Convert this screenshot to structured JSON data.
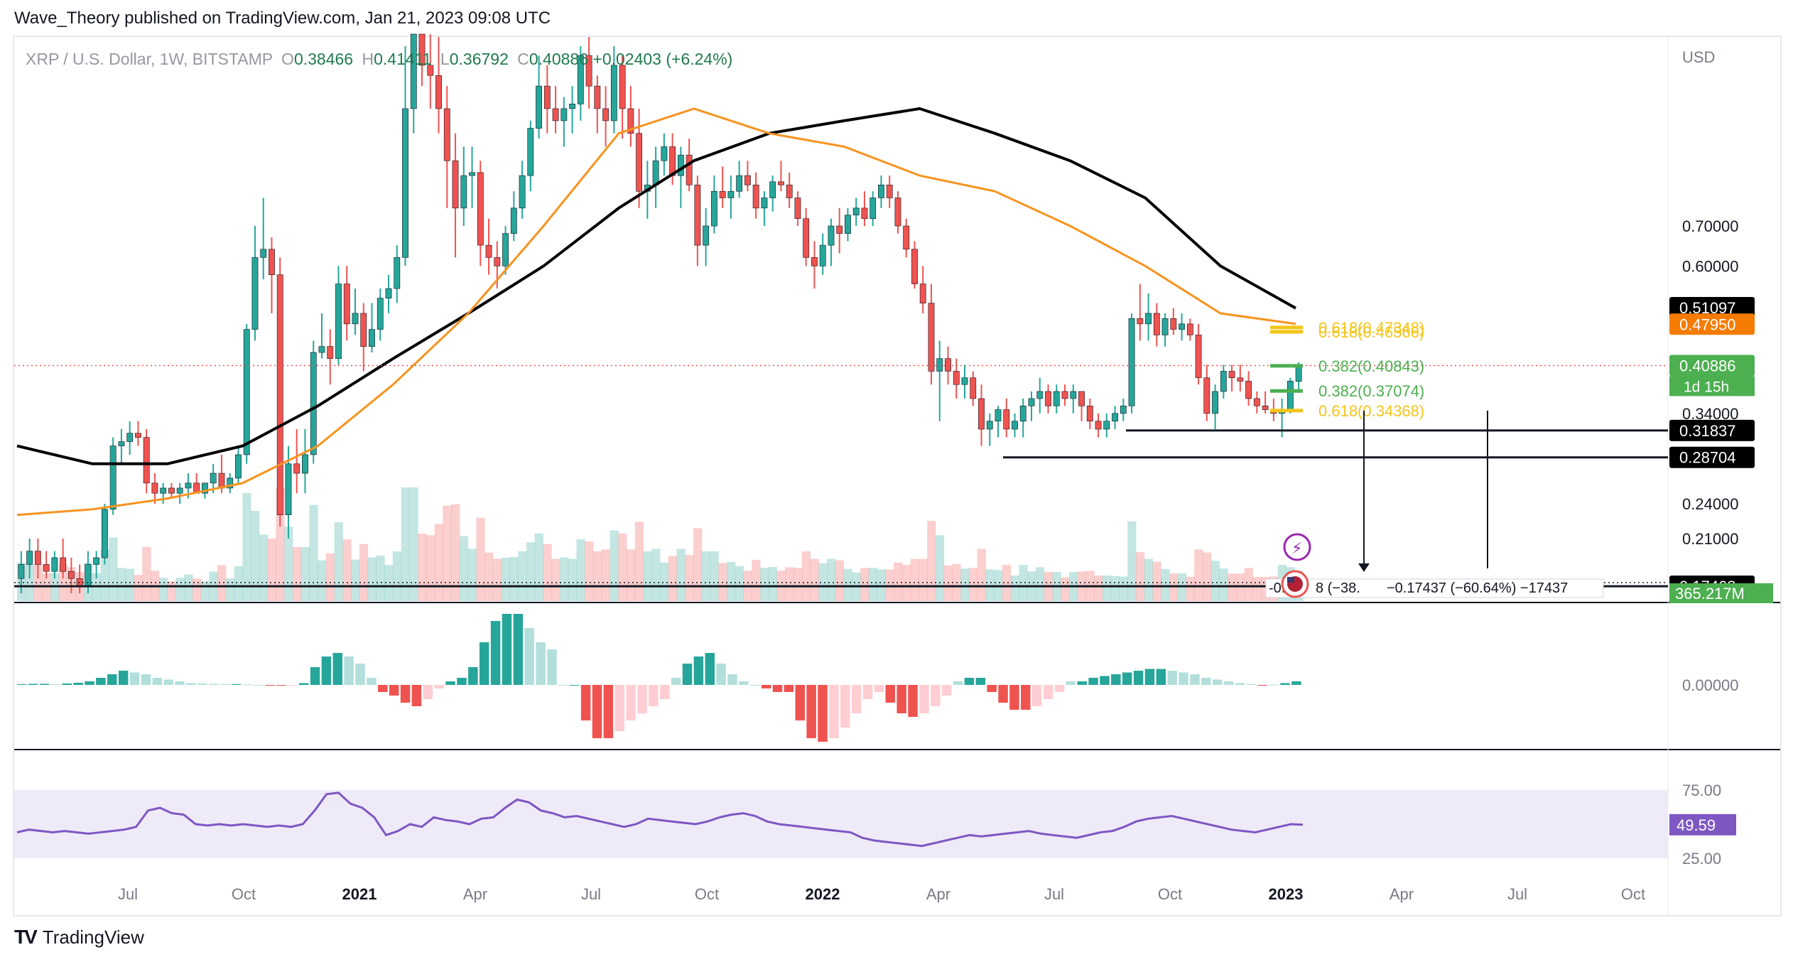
{
  "publisher": "Wave_Theory published on TradingView.com, Jan 21, 2023 09:08 UTC",
  "legend": {
    "symbol": "XRP / U.S. Dollar, 1W, BITSTAMP",
    "o_label": "O",
    "o_value": "0.38466",
    "h_label": "H",
    "h_value": "0.41411",
    "l_label": "L",
    "l_value": "0.36792",
    "c_label": "C",
    "c_value": "0.40886",
    "change": "+0.02403 (+6.24%)"
  },
  "footer": {
    "logo_text": "TradingView",
    "logo_mark": "TV"
  },
  "colors": {
    "up": "#26a69a",
    "down": "#ef5350",
    "ema_orange": "#f7931e",
    "sma_black": "#000000",
    "fib_gold": "#f5c518",
    "fib_green": "#4caf50",
    "rsi": "#7e57c2",
    "macd": "#2962ff"
  },
  "chart_data": [
    {
      "type": "candlestick",
      "price_axis_label": "USD",
      "scale": "log",
      "y_ticks": [
        "0.70000",
        "0.60000",
        "0.34000",
        "0.24000",
        "0.21000"
      ],
      "x_ticks": [
        "Jul",
        "Oct",
        "2021",
        "Apr",
        "Jul",
        "Oct",
        "2022",
        "Apr",
        "Jul",
        "Oct",
        "2023",
        "Apr",
        "Jul",
        "Oct"
      ],
      "ohlc": [
        [
          0.18,
          0.2,
          0.17,
          0.19
        ],
        [
          0.19,
          0.21,
          0.18,
          0.2
        ],
        [
          0.2,
          0.21,
          0.18,
          0.19
        ],
        [
          0.19,
          0.2,
          0.18,
          0.185
        ],
        [
          0.185,
          0.2,
          0.18,
          0.195
        ],
        [
          0.195,
          0.21,
          0.18,
          0.185
        ],
        [
          0.185,
          0.195,
          0.17,
          0.18
        ],
        [
          0.18,
          0.19,
          0.17,
          0.175
        ],
        [
          0.175,
          0.2,
          0.17,
          0.19
        ],
        [
          0.19,
          0.2,
          0.18,
          0.195
        ],
        [
          0.195,
          0.24,
          0.19,
          0.235
        ],
        [
          0.235,
          0.31,
          0.23,
          0.3
        ],
        [
          0.3,
          0.32,
          0.28,
          0.305
        ],
        [
          0.305,
          0.33,
          0.29,
          0.315
        ],
        [
          0.315,
          0.33,
          0.3,
          0.31
        ],
        [
          0.31,
          0.32,
          0.25,
          0.26
        ],
        [
          0.26,
          0.27,
          0.24,
          0.25
        ],
        [
          0.25,
          0.26,
          0.24,
          0.255
        ],
        [
          0.255,
          0.26,
          0.245,
          0.25
        ],
        [
          0.25,
          0.26,
          0.24,
          0.255
        ],
        [
          0.255,
          0.27,
          0.245,
          0.26
        ],
        [
          0.26,
          0.27,
          0.25,
          0.25
        ],
        [
          0.25,
          0.26,
          0.245,
          0.26
        ],
        [
          0.26,
          0.28,
          0.25,
          0.27
        ],
        [
          0.27,
          0.29,
          0.25,
          0.255
        ],
        [
          0.255,
          0.27,
          0.25,
          0.265
        ],
        [
          0.265,
          0.3,
          0.26,
          0.29
        ],
        [
          0.29,
          0.48,
          0.28,
          0.47
        ],
        [
          0.47,
          0.7,
          0.45,
          0.62
        ],
        [
          0.62,
          0.78,
          0.57,
          0.64
        ],
        [
          0.64,
          0.67,
          0.5,
          0.58
        ],
        [
          0.58,
          0.62,
          0.22,
          0.23
        ],
        [
          0.23,
          0.3,
          0.21,
          0.28
        ],
        [
          0.28,
          0.32,
          0.25,
          0.27
        ],
        [
          0.27,
          0.32,
          0.25,
          0.29
        ],
        [
          0.29,
          0.45,
          0.28,
          0.43
        ],
        [
          0.43,
          0.5,
          0.42,
          0.44
        ],
        [
          0.44,
          0.47,
          0.38,
          0.42
        ],
        [
          0.42,
          0.6,
          0.41,
          0.56
        ],
        [
          0.56,
          0.6,
          0.45,
          0.48
        ],
        [
          0.48,
          0.55,
          0.46,
          0.5
        ],
        [
          0.5,
          0.52,
          0.4,
          0.44
        ],
        [
          0.44,
          0.52,
          0.43,
          0.47
        ],
        [
          0.47,
          0.55,
          0.45,
          0.53
        ],
        [
          0.53,
          0.58,
          0.5,
          0.55
        ],
        [
          0.55,
          0.65,
          0.52,
          0.62
        ],
        [
          0.62,
          1.4,
          0.6,
          1.1
        ],
        [
          1.1,
          1.9,
          1.0,
          1.5
        ],
        [
          1.5,
          1.65,
          1.2,
          1.3
        ],
        [
          1.3,
          1.5,
          1.1,
          1.25
        ],
        [
          1.25,
          1.45,
          1.0,
          1.1
        ],
        [
          1.1,
          1.2,
          0.75,
          0.9
        ],
        [
          0.9,
          1.0,
          0.62,
          0.75
        ],
        [
          0.75,
          0.95,
          0.7,
          0.85
        ],
        [
          0.85,
          0.95,
          0.75,
          0.86
        ],
        [
          0.86,
          0.9,
          0.6,
          0.65
        ],
        [
          0.65,
          0.72,
          0.58,
          0.62
        ],
        [
          0.62,
          0.66,
          0.55,
          0.6
        ],
        [
          0.6,
          0.7,
          0.58,
          0.68
        ],
        [
          0.68,
          0.8,
          0.66,
          0.75
        ],
        [
          0.75,
          0.9,
          0.72,
          0.85
        ],
        [
          0.85,
          1.05,
          0.8,
          1.02
        ],
        [
          1.02,
          1.35,
          0.98,
          1.2
        ],
        [
          1.2,
          1.3,
          1.0,
          1.1
        ],
        [
          1.1,
          1.2,
          1.0,
          1.05
        ],
        [
          1.05,
          1.15,
          0.95,
          1.1
        ],
        [
          1.1,
          1.2,
          1.0,
          1.12
        ],
        [
          1.12,
          1.4,
          1.05,
          1.35
        ],
        [
          1.35,
          1.45,
          1.1,
          1.2
        ],
        [
          1.2,
          1.25,
          1.0,
          1.1
        ],
        [
          1.1,
          1.2,
          0.95,
          1.05
        ],
        [
          1.05,
          1.4,
          1.0,
          1.3
        ],
        [
          1.3,
          1.35,
          0.98,
          1.1
        ],
        [
          1.1,
          1.2,
          0.95,
          1.0
        ],
        [
          1.0,
          1.1,
          0.75,
          0.8
        ],
        [
          0.8,
          0.9,
          0.72,
          0.82
        ],
        [
          0.82,
          0.95,
          0.75,
          0.9
        ],
        [
          0.9,
          1.0,
          0.85,
          0.95
        ],
        [
          0.95,
          1.0,
          0.82,
          0.85
        ],
        [
          0.85,
          0.95,
          0.75,
          0.92
        ],
        [
          0.92,
          0.98,
          0.8,
          0.82
        ],
        [
          0.82,
          0.85,
          0.6,
          0.65
        ],
        [
          0.65,
          0.75,
          0.6,
          0.7
        ],
        [
          0.7,
          0.85,
          0.68,
          0.8
        ],
        [
          0.8,
          0.88,
          0.75,
          0.78
        ],
        [
          0.78,
          0.85,
          0.72,
          0.8
        ],
        [
          0.8,
          0.9,
          0.78,
          0.85
        ],
        [
          0.85,
          0.9,
          0.8,
          0.82
        ],
        [
          0.82,
          0.86,
          0.72,
          0.75
        ],
        [
          0.75,
          0.8,
          0.7,
          0.78
        ],
        [
          0.78,
          0.85,
          0.74,
          0.83
        ],
        [
          0.83,
          0.9,
          0.8,
          0.82
        ],
        [
          0.82,
          0.86,
          0.75,
          0.78
        ],
        [
          0.78,
          0.8,
          0.7,
          0.72
        ],
        [
          0.72,
          0.75,
          0.6,
          0.62
        ],
        [
          0.62,
          0.66,
          0.55,
          0.6
        ],
        [
          0.6,
          0.68,
          0.58,
          0.65
        ],
        [
          0.65,
          0.72,
          0.6,
          0.7
        ],
        [
          0.7,
          0.75,
          0.63,
          0.68
        ],
        [
          0.68,
          0.75,
          0.66,
          0.73
        ],
        [
          0.73,
          0.78,
          0.7,
          0.75
        ],
        [
          0.75,
          0.8,
          0.7,
          0.72
        ],
        [
          0.72,
          0.8,
          0.7,
          0.78
        ],
        [
          0.78,
          0.85,
          0.75,
          0.82
        ],
        [
          0.82,
          0.85,
          0.75,
          0.78
        ],
        [
          0.78,
          0.8,
          0.68,
          0.7
        ],
        [
          0.7,
          0.72,
          0.62,
          0.64
        ],
        [
          0.64,
          0.66,
          0.55,
          0.56
        ],
        [
          0.56,
          0.6,
          0.5,
          0.52
        ],
        [
          0.52,
          0.56,
          0.38,
          0.4
        ],
        [
          0.4,
          0.45,
          0.33,
          0.42
        ],
        [
          0.42,
          0.44,
          0.38,
          0.4
        ],
        [
          0.4,
          0.42,
          0.36,
          0.38
        ],
        [
          0.38,
          0.41,
          0.36,
          0.39
        ],
        [
          0.39,
          0.4,
          0.35,
          0.36
        ],
        [
          0.36,
          0.38,
          0.3,
          0.32
        ],
        [
          0.32,
          0.34,
          0.3,
          0.33
        ],
        [
          0.33,
          0.35,
          0.31,
          0.345
        ],
        [
          0.345,
          0.36,
          0.31,
          0.32
        ],
        [
          0.32,
          0.34,
          0.31,
          0.33
        ],
        [
          0.33,
          0.36,
          0.31,
          0.35
        ],
        [
          0.35,
          0.37,
          0.33,
          0.36
        ],
        [
          0.36,
          0.39,
          0.34,
          0.37
        ],
        [
          0.37,
          0.38,
          0.34,
          0.35
        ],
        [
          0.35,
          0.38,
          0.34,
          0.37
        ],
        [
          0.37,
          0.38,
          0.35,
          0.36
        ],
        [
          0.36,
          0.38,
          0.34,
          0.37
        ],
        [
          0.37,
          0.37,
          0.33,
          0.35
        ],
        [
          0.35,
          0.36,
          0.32,
          0.33
        ],
        [
          0.33,
          0.34,
          0.31,
          0.32
        ],
        [
          0.32,
          0.34,
          0.31,
          0.33
        ],
        [
          0.33,
          0.35,
          0.32,
          0.34
        ],
        [
          0.34,
          0.36,
          0.33,
          0.35
        ],
        [
          0.35,
          0.5,
          0.34,
          0.49
        ],
        [
          0.49,
          0.56,
          0.45,
          0.48
        ],
        [
          0.48,
          0.54,
          0.45,
          0.5
        ],
        [
          0.5,
          0.52,
          0.44,
          0.46
        ],
        [
          0.46,
          0.5,
          0.44,
          0.49
        ],
        [
          0.49,
          0.51,
          0.46,
          0.47
        ],
        [
          0.47,
          0.5,
          0.45,
          0.48
        ],
        [
          0.48,
          0.49,
          0.45,
          0.46
        ],
        [
          0.46,
          0.48,
          0.38,
          0.39
        ],
        [
          0.39,
          0.41,
          0.33,
          0.34
        ],
        [
          0.34,
          0.38,
          0.32,
          0.37
        ],
        [
          0.37,
          0.41,
          0.36,
          0.4
        ],
        [
          0.4,
          0.41,
          0.37,
          0.39
        ],
        [
          0.39,
          0.41,
          0.37,
          0.385
        ],
        [
          0.385,
          0.4,
          0.35,
          0.36
        ],
        [
          0.36,
          0.37,
          0.34,
          0.35
        ],
        [
          0.35,
          0.37,
          0.34,
          0.345
        ],
        [
          0.345,
          0.36,
          0.33,
          0.34
        ],
        [
          0.34,
          0.36,
          0.31,
          0.345
        ],
        [
          0.345,
          0.39,
          0.34,
          0.385
        ],
        [
          0.38466,
          0.41411,
          0.36792,
          0.40886
        ]
      ],
      "ema_50": [
        0.23,
        0.235,
        0.245,
        0.26,
        0.3,
        0.38,
        0.5,
        0.7,
        1.0,
        1.1,
        1.0,
        0.95,
        0.85,
        0.8,
        0.7,
        0.6,
        0.5,
        0.48
      ],
      "sma_200": [
        0.3,
        0.28,
        0.28,
        0.3,
        0.35,
        0.42,
        0.5,
        0.6,
        0.75,
        0.9,
        1.0,
        1.05,
        1.1,
        1.0,
        0.9,
        0.78,
        0.6,
        0.51
      ],
      "price_labels": [
        "0.51097",
        "0.47950",
        "0.40886",
        "0.31837",
        "0.28704",
        "0.17468"
      ],
      "countdown": "1d 15h",
      "fib_levels": [
        {
          "text": "0.618(0.47348)",
          "color": "#f5c518"
        },
        {
          "text": "0.618(0.46566)",
          "color": "#f5c518"
        },
        {
          "text": "0.382(0.40843)",
          "color": "#4caf50"
        },
        {
          "text": "0.382(0.37074)",
          "color": "#4caf50"
        },
        {
          "text": "0.618(0.34368)",
          "color": "#f5c518"
        }
      ],
      "measure_text": [
        "-0.",
        "8 (−38.",
        "−0.17437 (−60.64%) −17437"
      ],
      "volume_label": "365.217M"
    },
    {
      "type": "macd",
      "zero_label": "0.00000",
      "histogram": [
        0.002,
        0.003,
        0.003,
        0.002,
        0.004,
        0.006,
        0.01,
        0.02,
        0.03,
        0.04,
        0.035,
        0.03,
        0.02,
        0.015,
        0.01,
        0.005,
        0.004,
        0.003,
        0.002,
        0.002,
        0.001,
        0,
        -0.001,
        -0.002,
        -0.001,
        0.005,
        0.05,
        0.08,
        0.09,
        0.08,
        0.06,
        0.02,
        -0.02,
        -0.03,
        -0.05,
        -0.06,
        -0.04,
        -0.01,
        0.01,
        0.02,
        0.05,
        0.12,
        0.18,
        0.2,
        0.2,
        0.16,
        0.12,
        0.1,
        0,
        0,
        -0.1,
        -0.15,
        -0.15,
        -0.13,
        -0.1,
        -0.08,
        -0.06,
        -0.04,
        0.02,
        0.06,
        0.08,
        0.09,
        0.06,
        0.03,
        0.01,
        0,
        -0.01,
        -0.02,
        -0.02,
        -0.1,
        -0.15,
        -0.16,
        -0.15,
        -0.12,
        -0.08,
        -0.04,
        -0.02,
        -0.05,
        -0.08,
        -0.09,
        -0.08,
        -0.06,
        -0.03,
        0.01,
        0.02,
        0.02,
        -0.02,
        -0.05,
        -0.07,
        -0.07,
        -0.06,
        -0.04,
        -0.02,
        0.01,
        0.01,
        0.02,
        0.025,
        0.03,
        0.035,
        0.04,
        0.045,
        0.045,
        0.04,
        0.035,
        0.03,
        0.02,
        0.015,
        0.01,
        0.005,
        0.002,
        -0.002,
        0.001,
        0.005,
        0.01
      ]
    },
    {
      "type": "rsi",
      "value_label": "49.59",
      "upper_label": "75.00",
      "lower_label": "25.00",
      "values": [
        44,
        46,
        45,
        44,
        45,
        44,
        43,
        44,
        45,
        46,
        48,
        60,
        62,
        58,
        57,
        50,
        49,
        50,
        49,
        50,
        49,
        48,
        49,
        48,
        50,
        60,
        72,
        73,
        65,
        62,
        55,
        42,
        45,
        50,
        48,
        55,
        53,
        52,
        50,
        54,
        55,
        62,
        68,
        66,
        60,
        58,
        55,
        56,
        54,
        52,
        50,
        48,
        50,
        54,
        53,
        52,
        51,
        50,
        52,
        55,
        57,
        58,
        56,
        52,
        50,
        49,
        48,
        47,
        46,
        45,
        44,
        40,
        38,
        37,
        36,
        35,
        34,
        36,
        38,
        40,
        42,
        41,
        42,
        43,
        44,
        45,
        43,
        42,
        41,
        40,
        42,
        44,
        45,
        48,
        52,
        54,
        55,
        56,
        54,
        52,
        50,
        48,
        46,
        45,
        44,
        46,
        48,
        50,
        49.59
      ]
    }
  ]
}
